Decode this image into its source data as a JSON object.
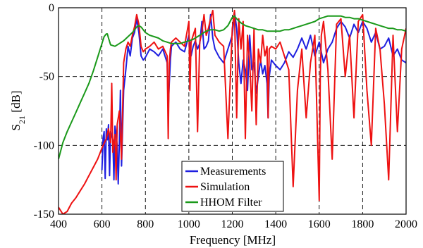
{
  "chart_data": {
    "type": "line",
    "title": "",
    "xlabel": "Frequency [MHz]",
    "ylabel": {
      "base": "S",
      "sub": "21",
      "unit": " [dB]"
    },
    "xlim": [
      400,
      2000
    ],
    "ylim": [
      -150,
      0
    ],
    "x_ticks": [
      400,
      600,
      800,
      1000,
      1200,
      1400,
      1600,
      1800,
      2000
    ],
    "y_ticks": [
      0,
      -50,
      -100,
      -150
    ],
    "grid": true,
    "legend_position": "bottom-center",
    "series": [
      {
        "name": "Measurements",
        "color": "#1f1fe0",
        "x": [
          600,
          605,
          610,
          615,
          620,
          625,
          630,
          635,
          640,
          645,
          650,
          655,
          660,
          665,
          670,
          675,
          680,
          685,
          690,
          700,
          710,
          720,
          730,
          740,
          750,
          760,
          770,
          780,
          790,
          800,
          820,
          840,
          860,
          880,
          900,
          905,
          910,
          915,
          920,
          940,
          960,
          980,
          1000,
          1010,
          1020,
          1030,
          1040,
          1050,
          1060,
          1070,
          1080,
          1090,
          1100,
          1110,
          1120,
          1140,
          1160,
          1180,
          1200,
          1210,
          1220,
          1230,
          1240,
          1250,
          1260,
          1270,
          1280,
          1290,
          1300,
          1310,
          1320,
          1330,
          1340,
          1350,
          1360,
          1365,
          1370,
          1380,
          1400,
          1420,
          1440,
          1460,
          1480,
          1500,
          1520,
          1540,
          1560,
          1580,
          1600,
          1620,
          1640,
          1660,
          1680,
          1700,
          1720,
          1740,
          1760,
          1780,
          1800,
          1820,
          1840,
          1860,
          1880,
          1900,
          1920,
          1940,
          1960,
          1980,
          2000
        ],
        "y": [
          -118,
          -95,
          -90,
          -124,
          -88,
          -96,
          -85,
          -122,
          -90,
          -93,
          -96,
          -125,
          -86,
          -92,
          -100,
          -128,
          -98,
          -60,
          -115,
          -60,
          -45,
          -28,
          -35,
          -22,
          -18,
          -8,
          -18,
          -35,
          -38,
          -36,
          -30,
          -32,
          -35,
          -30,
          -40,
          -75,
          -55,
          -38,
          -28,
          -25,
          -30,
          -32,
          -20,
          -35,
          -28,
          -24,
          -30,
          -26,
          -10,
          -30,
          -28,
          -24,
          -5,
          -22,
          -30,
          -36,
          -40,
          -30,
          -20,
          -3,
          -15,
          -40,
          -55,
          -38,
          -45,
          -60,
          -20,
          -45,
          -40,
          -62,
          -50,
          -38,
          -48,
          -42,
          -55,
          -80,
          -50,
          -38,
          -42,
          -45,
          -40,
          -32,
          -36,
          -30,
          -22,
          -30,
          -20,
          -35,
          -25,
          -40,
          -30,
          -25,
          -15,
          -10,
          -14,
          -22,
          -12,
          -18,
          -10,
          -15,
          -25,
          -18,
          -30,
          -28,
          -22,
          -35,
          -30,
          -38,
          -40
        ]
      },
      {
        "name": "Simulation",
        "color": "#ee1111",
        "x": [
          400,
          420,
          440,
          460,
          480,
          500,
          520,
          540,
          560,
          580,
          600,
          620,
          630,
          640,
          645,
          650,
          660,
          665,
          670,
          680,
          690,
          700,
          710,
          720,
          730,
          740,
          750,
          760,
          770,
          780,
          790,
          800,
          820,
          840,
          860,
          880,
          900,
          905,
          910,
          915,
          920,
          940,
          960,
          980,
          1000,
          1005,
          1010,
          1020,
          1030,
          1040,
          1050,
          1060,
          1070,
          1080,
          1090,
          1100,
          1110,
          1120,
          1140,
          1160,
          1180,
          1200,
          1210,
          1220,
          1230,
          1240,
          1250,
          1260,
          1270,
          1280,
          1290,
          1300,
          1310,
          1320,
          1330,
          1340,
          1350,
          1360,
          1365,
          1370,
          1380,
          1400,
          1420,
          1440,
          1460,
          1480,
          1500,
          1520,
          1540,
          1560,
          1580,
          1600,
          1605,
          1610,
          1620,
          1640,
          1660,
          1680,
          1700,
          1720,
          1740,
          1760,
          1780,
          1800,
          1820,
          1840,
          1860,
          1880,
          1900,
          1920,
          1940,
          1960,
          1980,
          2000
        ],
        "y": [
          -145,
          -150,
          -148,
          -142,
          -138,
          -133,
          -128,
          -122,
          -116,
          -110,
          -102,
          -95,
          -88,
          -98,
          -55,
          -105,
          -92,
          -125,
          -85,
          -75,
          -110,
          -40,
          -30,
          -25,
          -28,
          -20,
          -14,
          -5,
          -12,
          -28,
          -32,
          -30,
          -28,
          -25,
          -30,
          -28,
          -35,
          -95,
          -40,
          -30,
          -25,
          -22,
          -25,
          -28,
          -10,
          -60,
          -25,
          -20,
          -15,
          -90,
          -25,
          -18,
          -5,
          -20,
          -15,
          -8,
          -2,
          -20,
          -25,
          -28,
          -95,
          -15,
          -2,
          -80,
          -8,
          -30,
          -10,
          -95,
          -20,
          -40,
          -75,
          -15,
          -85,
          -30,
          -40,
          -20,
          -35,
          -28,
          -80,
          -30,
          -28,
          -30,
          -25,
          -35,
          -45,
          -130,
          -60,
          -30,
          -80,
          -40,
          -20,
          -140,
          -50,
          -20,
          -10,
          -45,
          -110,
          -12,
          -8,
          -50,
          -20,
          -80,
          -10,
          -5,
          -60,
          -100,
          -15,
          -30,
          -70,
          -125,
          -20,
          -90,
          -30,
          -15
        ]
      },
      {
        "name": "HHOM Filter",
        "color": "#1a991a",
        "x": [
          400,
          420,
          440,
          460,
          480,
          500,
          520,
          540,
          560,
          580,
          600,
          610,
          620,
          625,
          630,
          640,
          660,
          680,
          700,
          720,
          740,
          760,
          770,
          780,
          800,
          820,
          840,
          860,
          880,
          900,
          920,
          940,
          960,
          980,
          1000,
          1020,
          1040,
          1060,
          1080,
          1100,
          1120,
          1140,
          1160,
          1180,
          1190,
          1200,
          1210,
          1220,
          1240,
          1260,
          1280,
          1300,
          1320,
          1340,
          1360,
          1380,
          1400,
          1420,
          1440,
          1460,
          1480,
          1500,
          1520,
          1540,
          1560,
          1580,
          1600,
          1620,
          1640,
          1660,
          1680,
          1700,
          1720,
          1740,
          1760,
          1780,
          1800,
          1820,
          1840,
          1860,
          1880,
          1900,
          1920,
          1940,
          1960,
          1980,
          2000
        ],
        "y": [
          -110,
          -98,
          -90,
          -83,
          -76,
          -69,
          -62,
          -55,
          -46,
          -36,
          -26,
          -21,
          -19,
          -19,
          -22,
          -27,
          -28,
          -26,
          -24,
          -21,
          -18,
          -14,
          -13,
          -14,
          -18,
          -20,
          -21,
          -22,
          -24,
          -25,
          -26,
          -26,
          -26,
          -25,
          -24,
          -23,
          -21,
          -19,
          -17,
          -16,
          -16,
          -17,
          -16,
          -13,
          -10,
          -7,
          -6,
          -8,
          -11,
          -13,
          -14,
          -15,
          -16,
          -16,
          -17,
          -17,
          -17,
          -17,
          -16,
          -16,
          -15,
          -14,
          -13,
          -12,
          -11,
          -10,
          -8,
          -7,
          -6,
          -6,
          -6,
          -6,
          -7,
          -7,
          -8,
          -8,
          -9,
          -10,
          -11,
          -12,
          -13,
          -14,
          -15,
          -15,
          -16,
          -16,
          -17
        ]
      }
    ]
  }
}
